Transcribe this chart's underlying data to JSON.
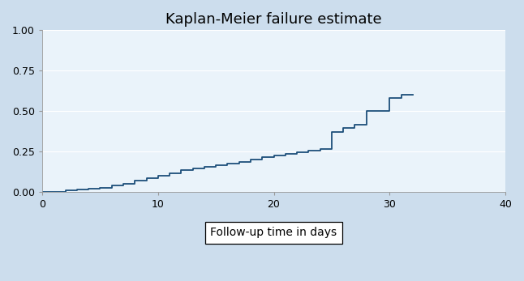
{
  "title": "Kaplan-Meier failure estimate",
  "xlabel": "Follow-up time in days",
  "xlim": [
    0,
    40
  ],
  "ylim": [
    0,
    1.0
  ],
  "xticks": [
    0,
    10,
    20,
    30,
    40
  ],
  "yticks": [
    0.0,
    0.25,
    0.5,
    0.75,
    1.0
  ],
  "background_color": "#ccdded",
  "plot_bg_color": "#eaf3fa",
  "line_color": "#1c4f7a",
  "title_fontsize": 13,
  "label_fontsize": 10,
  "tick_fontsize": 9,
  "step_times": [
    0,
    1,
    2,
    3,
    4,
    5,
    6,
    7,
    8,
    9,
    10,
    11,
    12,
    13,
    14,
    15,
    16,
    17,
    18,
    19,
    20,
    21,
    22,
    23,
    24,
    25,
    26,
    27,
    28,
    29,
    30,
    31,
    32
  ],
  "step_values": [
    0.0,
    0.0,
    0.01,
    0.015,
    0.02,
    0.025,
    0.04,
    0.05,
    0.07,
    0.085,
    0.1,
    0.115,
    0.135,
    0.145,
    0.155,
    0.165,
    0.175,
    0.185,
    0.2,
    0.215,
    0.225,
    0.235,
    0.245,
    0.255,
    0.265,
    0.37,
    0.395,
    0.415,
    0.5,
    0.5,
    0.58,
    0.6,
    0.6
  ]
}
